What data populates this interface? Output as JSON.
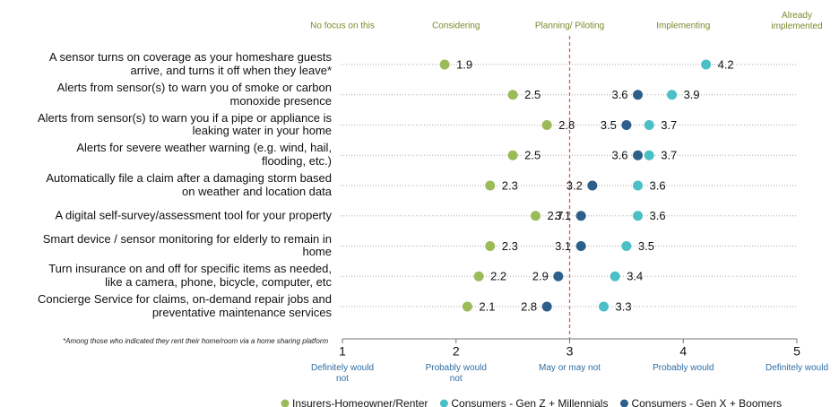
{
  "chart_data": {
    "type": "dot",
    "categories": [
      "A sensor turns on coverage as your homeshare guests arrive, and turns it off when they leave*",
      "Alerts from sensor(s) to warn you of smoke or carbon monoxide presence",
      "Alerts from sensor(s) to warn you if a pipe or appliance is leaking water in your home",
      "Alerts for severe weather warning (e.g. wind, hail, flooding, etc.)",
      "Automatically file a claim after a damaging storm based on weather and location data",
      "A digital self-survey/assessment tool for your property",
      "Smart device / sensor monitoring for elderly to remain in home",
      "Turn insurance on and off for specific items as needed, like a camera, phone, bicycle, computer, etc",
      "Concierge Service  for claims, on-demand repair jobs and preventative maintenance services"
    ],
    "series": [
      {
        "name": "Insurers-Homeowner/Renter",
        "color": "#9bbb59",
        "values": [
          1.9,
          2.5,
          2.8,
          2.5,
          2.3,
          2.7,
          2.3,
          2.2,
          2.1
        ]
      },
      {
        "name": "Consumers - Gen Z + Millennials",
        "color": "#4bbfc6",
        "values": [
          4.2,
          3.9,
          3.7,
          3.7,
          3.6,
          3.6,
          3.5,
          3.4,
          3.3
        ]
      },
      {
        "name": "Consumers - Gen X + Boomers",
        "color": "#2d5f8b",
        "values": [
          null,
          3.6,
          3.5,
          3.6,
          3.2,
          3.1,
          3.1,
          2.9,
          2.8
        ]
      }
    ],
    "xlim": [
      1,
      5
    ],
    "xticks": [
      1,
      2,
      3,
      4,
      5
    ],
    "reference_line": 3,
    "top_labels": [
      "No focus on this",
      "Considering",
      "Planning/ Piloting",
      "Implementing",
      "Already implemented"
    ],
    "bottom_labels": [
      "Definitely would not",
      "Probably would not",
      "May or may not",
      "Probably would",
      "Definitely would"
    ],
    "footnote": "*Among those who indicated they rent their home/room via a home sharing platform"
  }
}
